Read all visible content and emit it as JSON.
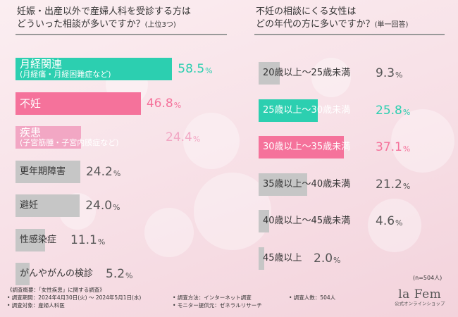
{
  "colors": {
    "teal": "#2ccfb0",
    "pink": "#f5729b",
    "lightpink": "#f2a7c4",
    "gray": "#c6c6c6",
    "text_dark": "#333333"
  },
  "left_panel": {
    "title_line1": "妊娠・出産以外で産婦人科を受診する方は",
    "title_line2": "どういった相談が多いですか？",
    "title_sub": "(上位3つ)"
  },
  "right_panel": {
    "title_line1": "不妊の相談にくる女性は",
    "title_line2": "どの年代の方に多いですか？",
    "title_sub": "(単一回答)"
  },
  "chart_data": [
    {
      "type": "bar",
      "orientation": "horizontal",
      "xlim": [
        0,
        100
      ],
      "categories": [
        {
          "label": "月経関連",
          "note": "(月経痛・月経困難症など)",
          "value": "58.5",
          "color": "teal"
        },
        {
          "label": "不妊",
          "note": "",
          "value": "46.8",
          "color": "pink"
        },
        {
          "label": "疾患",
          "note": "(子宮筋腫・子宮内膜症など)",
          "value": "24.4",
          "color": "lightpink"
        },
        {
          "label": "更年期障害",
          "note": "",
          "value": "24.2",
          "color": "gray"
        },
        {
          "label": "避妊",
          "note": "",
          "value": "24.0",
          "color": "gray"
        },
        {
          "label": "性感染症",
          "note": "",
          "value": "11.1",
          "color": "gray"
        },
        {
          "label": "がんやがんの検診",
          "note": "",
          "value": "5.2",
          "color": "gray"
        }
      ],
      "unit": "%"
    },
    {
      "type": "bar",
      "orientation": "horizontal",
      "xlim": [
        0,
        100
      ],
      "categories": [
        {
          "label": "20歳以上～25歳未満",
          "note": "",
          "value": "9.3",
          "color": "gray"
        },
        {
          "label": "25歳以上～30歳未満",
          "note": "",
          "value": "25.8",
          "color": "teal"
        },
        {
          "label": "30歳以上～35歳未満",
          "note": "",
          "value": "37.1",
          "color": "pink"
        },
        {
          "label": "35歳以上～40歳未満",
          "note": "",
          "value": "21.2",
          "color": "gray"
        },
        {
          "label": "40歳以上～45歳未満",
          "note": "",
          "value": "4.6",
          "color": "gray"
        },
        {
          "label": "45歳以上",
          "note": "",
          "value": "2.0",
          "color": "gray"
        }
      ],
      "unit": "%"
    }
  ],
  "n_note": "(n=504人)",
  "footer": {
    "line1": "《調査概要：「女性疾患」に関する調査》",
    "period": "• 調査期間：2024年4月30日(火) ～ 2024年5月1日(水)",
    "method": "• 調査方法：インターネット調査",
    "count": "• 調査人数：504人",
    "target": "• 調査対象：産婦人科医",
    "monitor": "• モニター提供元：ゼネラルリサーチ"
  },
  "logo": {
    "name": "la Fem",
    "sub": "公式オンラインショップ"
  }
}
